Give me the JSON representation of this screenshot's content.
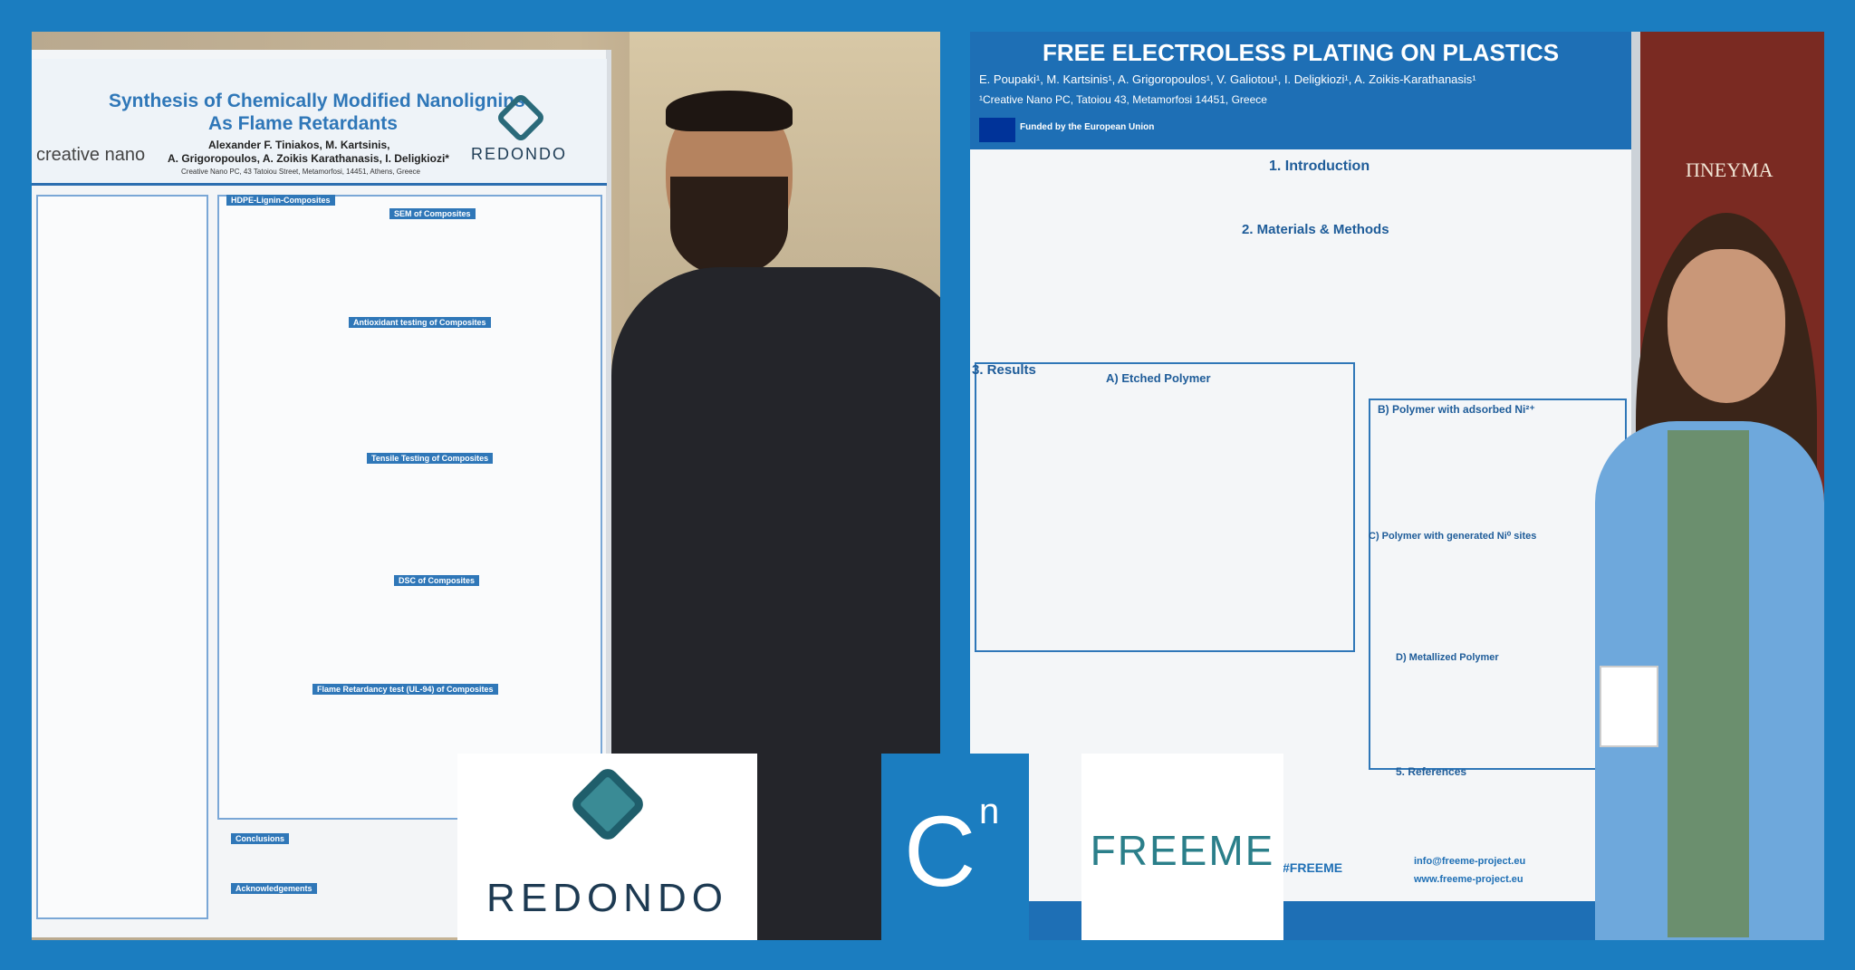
{
  "left_photo": {
    "poster_title_1": "Synthesis of Chemically Modified Nanolignins",
    "poster_title_2": "As Flame Retardants",
    "poster_authors_1": "Alexander F. Tiniakos, M. Kartsinis,",
    "poster_authors_2": "A. Grigoropoulos, A. Zoikis Karathanasis, I. Deligkiozi*",
    "poster_affiliation": "Creative Nano PC, 43 Tatoiou Street, Metamorfosi, 14451, Athens, Greece",
    "poster_org": "creative nano",
    "poster_logo": "REDONDO",
    "sections": [
      "HDPE-Lignin-Composites",
      "SEM of Composites",
      "Antioxidant testing of Composites",
      "Tensile Testing of Composites",
      "DSC of Composites",
      "Flame Retardancy test (UL-94) of Composites",
      "Conclusions",
      "Acknowledgements"
    ]
  },
  "right_photo": {
    "poster_title": "FREE ELECTROLESS PLATING ON PLASTICS",
    "poster_authors": "E. Poupaki¹, M. Kartsinis¹, A. Grigoropoulos¹, V. Galiotou¹, I. Deligkiozi¹, A. Zoikis-Karathanasis¹",
    "poster_affiliation": "¹Creative Nano PC, Tatoiou 43, Metamorfosi 14451, Greece",
    "funding": "Funded by the European Union",
    "sections": [
      "1. Introduction",
      "2. Materials & Methods",
      "3. Results",
      "A) Etched Polymer",
      "B) Polymer with adsorbed Ni²⁺",
      "C) Polymer with generated Ni⁰ sites",
      "D) Metallized Polymer",
      "5. References"
    ],
    "hashtag": "#FREEME",
    "email": "info@freeme-project.eu",
    "website": "www.freeme-project.eu",
    "wall_sign": "ΠΝΕΥΜΑ"
  },
  "logos": {
    "redondo": "REDONDO",
    "cn_letter": "C",
    "cn_superscript": "n",
    "freeme": "FREEME"
  }
}
